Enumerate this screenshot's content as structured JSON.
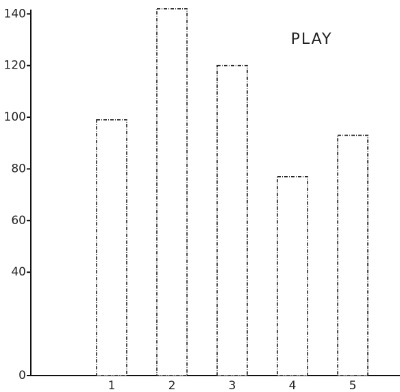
{
  "chart_data": {
    "type": "bar",
    "title": "PLAY",
    "categories": [
      "1",
      "2",
      "3",
      "4",
      "5"
    ],
    "values": [
      99,
      142,
      120,
      77,
      93
    ],
    "color": "#ffffff",
    "ylim": [
      0,
      143
    ],
    "yticks": [
      0,
      40,
      60,
      80,
      100,
      120,
      140
    ]
  }
}
